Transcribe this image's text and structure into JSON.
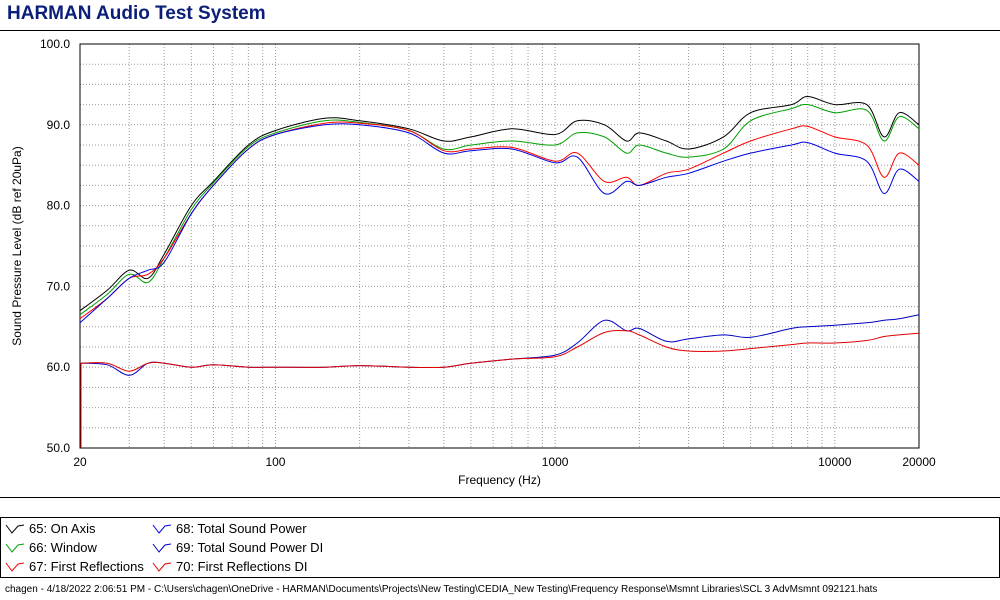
{
  "window": {
    "title": "HARMAN Audio Test System"
  },
  "footer": {
    "text": "chagen - 4/18/2022 2:06:51 PM - C:\\Users\\chagen\\OneDrive - HARMAN\\Documents\\Projects\\New Testing\\CEDIA_New Testing\\Frequency Response\\Msmnt Libraries\\SCL 3 AdvMsmnt 092121.hats"
  },
  "chart_data": {
    "type": "line",
    "title": "",
    "xlabel": "Frequency (Hz)",
    "ylabel": "Sound Pressure Level (dB ref 20uPa)",
    "xscale": "log",
    "xlim": [
      20,
      20000
    ],
    "ylim": [
      50,
      100
    ],
    "grid": true,
    "legend_position": "bottom",
    "x_ticks": [
      {
        "value": 20,
        "label": "20"
      },
      {
        "value": 100,
        "label": "100"
      },
      {
        "value": 1000,
        "label": "1000"
      },
      {
        "value": 10000,
        "label": "10000"
      },
      {
        "value": 20000,
        "label": "20000"
      }
    ],
    "y_ticks": [
      {
        "value": 50,
        "label": "50.0"
      },
      {
        "value": 60,
        "label": "60.0"
      },
      {
        "value": 70,
        "label": "70.0"
      },
      {
        "value": 80,
        "label": "80.0"
      },
      {
        "value": 90,
        "label": "90.0"
      },
      {
        "value": 100,
        "label": "100.0"
      }
    ],
    "x": [
      20,
      25,
      30,
      35,
      40,
      50,
      60,
      80,
      100,
      150,
      200,
      300,
      400,
      500,
      700,
      1000,
      1200,
      1500,
      1800,
      2000,
      2500,
      3000,
      4000,
      5000,
      7000,
      8000,
      10000,
      13000,
      15000,
      17000,
      20000
    ],
    "series": [
      {
        "name": "65: On Axis",
        "color": "#000000",
        "values": [
          67.0,
          69.5,
          72.0,
          71.0,
          74.0,
          80.0,
          83.0,
          87.5,
          89.3,
          90.8,
          90.5,
          89.5,
          88.0,
          88.5,
          89.5,
          88.8,
          90.5,
          90.0,
          88.0,
          89.0,
          88.0,
          87.0,
          88.5,
          91.5,
          92.5,
          93.5,
          92.5,
          92.5,
          88.5,
          91.5,
          90.0
        ]
      },
      {
        "name": "66: Window",
        "color": "#00a000",
        "values": [
          66.5,
          69.0,
          71.5,
          70.5,
          73.5,
          79.5,
          82.8,
          87.3,
          89.0,
          90.5,
          90.3,
          89.3,
          87.0,
          87.5,
          88.0,
          87.5,
          89.0,
          88.5,
          86.5,
          87.5,
          86.5,
          86.0,
          87.0,
          90.5,
          92.0,
          92.5,
          91.5,
          91.8,
          88.0,
          91.0,
          89.5
        ]
      },
      {
        "name": "67: First Reflections",
        "color": "#ff0000",
        "values": [
          66.0,
          68.5,
          71.0,
          71.5,
          73.5,
          79.0,
          82.5,
          87.0,
          88.8,
          90.2,
          90.2,
          89.3,
          86.8,
          87.0,
          87.2,
          85.5,
          86.5,
          83.0,
          83.5,
          82.5,
          84.0,
          84.5,
          86.5,
          88.0,
          89.5,
          89.8,
          88.5,
          87.5,
          83.5,
          86.5,
          85.0
        ]
      },
      {
        "name": "68: Total Sound Power",
        "color": "#0000e0",
        "values": [
          65.5,
          68.5,
          71.0,
          72.0,
          73.0,
          79.0,
          82.5,
          87.0,
          88.8,
          90.0,
          90.0,
          89.0,
          86.5,
          86.8,
          87.0,
          85.3,
          86.0,
          81.5,
          83.0,
          82.5,
          83.5,
          84.0,
          85.5,
          86.5,
          87.5,
          87.8,
          86.5,
          85.5,
          81.5,
          84.5,
          83.0
        ]
      },
      {
        "name": "69: Total Sound Power DI",
        "color": "#0000c0",
        "values": [
          60.5,
          60.3,
          59.0,
          60.5,
          60.5,
          60.0,
          60.3,
          60.0,
          60.0,
          60.0,
          60.2,
          60.0,
          60.0,
          60.5,
          61.0,
          61.5,
          63.0,
          65.8,
          64.5,
          64.8,
          63.2,
          63.5,
          64.0,
          63.7,
          64.8,
          65.0,
          65.2,
          65.5,
          65.8,
          66.0,
          66.5
        ]
      },
      {
        "name": "70: First Reflections DI",
        "color": "#e00000",
        "values": [
          60.5,
          60.5,
          59.5,
          60.5,
          60.5,
          60.0,
          60.3,
          60.0,
          60.0,
          60.0,
          60.2,
          60.0,
          60.0,
          60.5,
          61.0,
          61.3,
          62.5,
          64.3,
          64.5,
          64.0,
          62.5,
          62.0,
          62.0,
          62.3,
          62.8,
          63.0,
          63.0,
          63.3,
          63.8,
          64.0,
          64.2
        ]
      }
    ]
  }
}
